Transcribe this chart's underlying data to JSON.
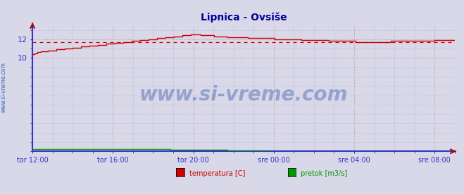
{
  "title": "Lipnica - Ovsiše",
  "title_color": "#000099",
  "bg_color": "#d8d8e8",
  "plot_bg_color": "#d8d8e8",
  "grid_color_pink": "#cc9999",
  "grid_color_gray": "#aaaacc",
  "left_axis_color": "#3333cc",
  "bottom_axis_color": "#3333cc",
  "temp_color": "#cc0000",
  "flow_color": "#009900",
  "avg_line_color": "#cc0000",
  "avg_value": 11.65,
  "watermark": "www.si-vreme.com",
  "watermark_color": "#3355aa",
  "sidebar_text": "www.si-vreme.com",
  "sidebar_color": "#3366bb",
  "xlim": [
    0,
    1260
  ],
  "ylim": [
    0,
    13.5
  ],
  "yticks": [
    10,
    12
  ],
  "xtick_labels": [
    "tor 12:00",
    "tor 16:00",
    "tor 20:00",
    "sre 00:00",
    "sre 04:00",
    "sre 08:00"
  ],
  "xtick_positions": [
    0,
    240,
    480,
    720,
    960,
    1200
  ],
  "legend_items": [
    "temperatura [C]",
    "pretok [m3/s]"
  ],
  "legend_colors": [
    "#cc0000",
    "#009900"
  ],
  "arrow_color": "#aa0000"
}
